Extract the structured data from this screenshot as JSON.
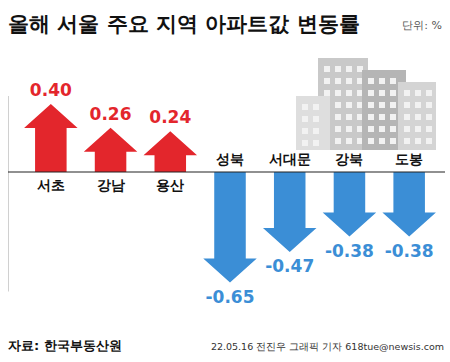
{
  "chart_data": {
    "type": "bar",
    "title": "올해 서울 주요 지역 아파트값 변동률",
    "ylabel": "단위: %",
    "categories": [
      "서초",
      "강남",
      "용산",
      "성북",
      "서대문",
      "강북",
      "도봉"
    ],
    "values": [
      0.4,
      0.26,
      0.24,
      -0.65,
      -0.47,
      -0.38,
      -0.38
    ],
    "value_labels": [
      "0.40",
      "0.26",
      "0.24",
      "-0.65",
      "-0.47",
      "-0.38",
      "-0.38"
    ],
    "colors": [
      "#e3262c",
      "#e3262c",
      "#e3262c",
      "#3b8ed6",
      "#3b8ed6",
      "#3b8ed6",
      "#3b8ed6"
    ],
    "ylim": [
      -0.7,
      0.45
    ],
    "yticks": [],
    "tick_labels": "x",
    "data_labels": true,
    "grid": false,
    "annotations": [
      "자료: 한국부동산원",
      "22.05.16 전진우 그래픽 기자 618tue@newsis.com"
    ]
  }
}
